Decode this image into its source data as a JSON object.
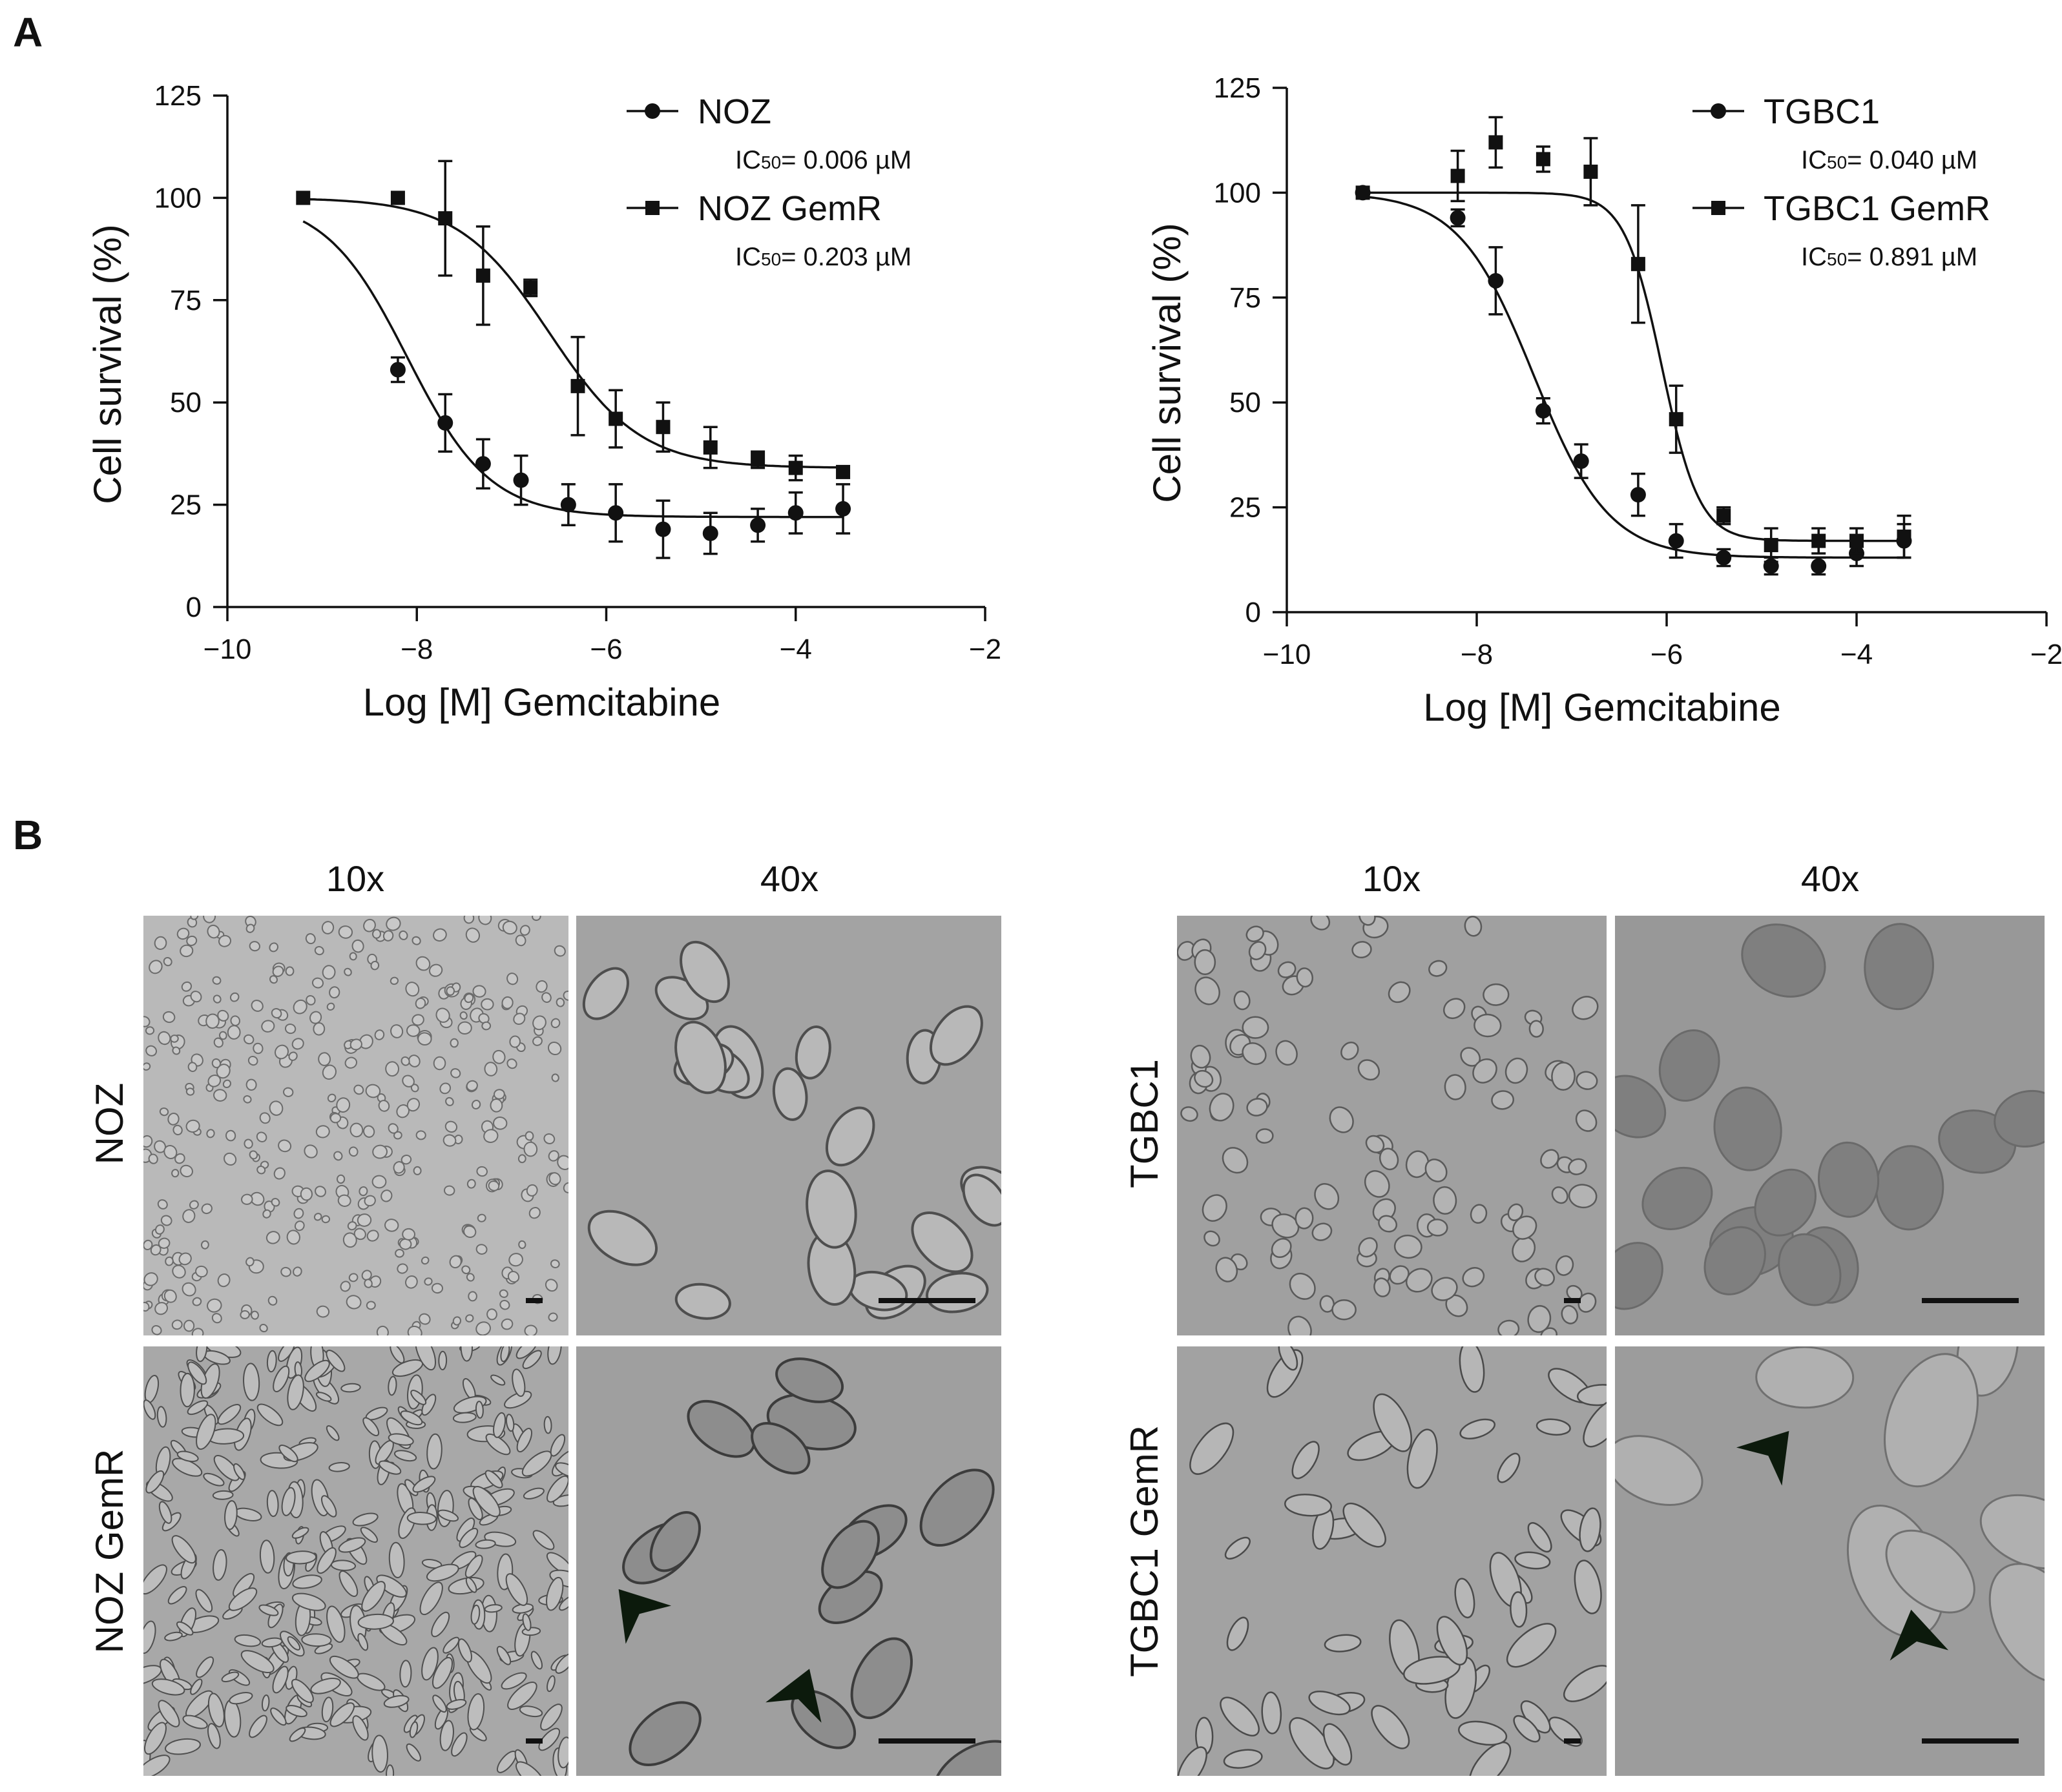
{
  "panel_a": {
    "label": "A"
  },
  "panel_b": {
    "label": "B",
    "groups": [
      {
        "magnifications": [
          "10x",
          "40x"
        ],
        "rows": [
          "NOZ",
          "NOZ GemR"
        ]
      },
      {
        "magnifications": [
          "10x",
          "40x"
        ],
        "rows": [
          "TGBC1",
          "TGBC1 GemR"
        ]
      }
    ]
  },
  "chart_data": [
    {
      "type": "scatter",
      "title": "",
      "xlabel": "Log [M] Gemcitabine",
      "ylabel": "Cell survival (%)",
      "xlim": [
        -10,
        -2
      ],
      "ylim": [
        0,
        125
      ],
      "xticks": [
        -10,
        -8,
        -6,
        -4,
        -2
      ],
      "yticks": [
        0,
        25,
        50,
        75,
        100,
        125
      ],
      "legend_position": "top-right",
      "series": [
        {
          "name": "NOZ",
          "marker": "circle",
          "ic50_label": "IC50= 0.006 µM",
          "x": [
            -8.2,
            -7.7,
            -7.3,
            -6.9,
            -6.4,
            -5.9,
            -5.4,
            -4.9,
            -4.4,
            -4.0,
            -3.5
          ],
          "y": [
            58,
            45,
            35,
            31,
            25,
            23,
            19,
            18,
            20,
            23,
            24
          ],
          "err": [
            3,
            7,
            6,
            6,
            5,
            7,
            7,
            5,
            4,
            5,
            6
          ],
          "fit": {
            "bottom": 22,
            "top": 100,
            "logEC50": -8.1,
            "hill": 1.0,
            "xrange": [
              -9.2,
              -3.5
            ]
          }
        },
        {
          "name": "NOZ GemR",
          "marker": "square",
          "ic50_label": "IC50= 0.203 µM",
          "x": [
            -9.2,
            -8.2,
            -7.7,
            -7.3,
            -6.8,
            -6.3,
            -5.9,
            -5.4,
            -4.9,
            -4.4,
            -4.0,
            -3.5
          ],
          "y": [
            100,
            100,
            95,
            81,
            78,
            54,
            46,
            44,
            39,
            36,
            34,
            33
          ],
          "err": [
            0,
            0,
            14,
            12,
            2,
            12,
            7,
            6,
            5,
            2,
            3,
            0
          ],
          "fit": {
            "bottom": 34,
            "top": 100,
            "logEC50": -6.6,
            "hill": 0.9,
            "xrange": [
              -9.2,
              -3.5
            ]
          }
        }
      ]
    },
    {
      "type": "scatter",
      "title": "",
      "xlabel": "Log [M] Gemcitabine",
      "ylabel": "Cell survival (%)",
      "xlim": [
        -10,
        -2
      ],
      "ylim": [
        0,
        125
      ],
      "xticks": [
        -10,
        -8,
        -6,
        -4,
        -2
      ],
      "yticks": [
        0,
        25,
        50,
        75,
        100,
        125
      ],
      "legend_position": "top-right",
      "series": [
        {
          "name": "TGBC1",
          "marker": "circle",
          "ic50_label": "IC50= 0.040 µM",
          "x": [
            -9.2,
            -8.2,
            -7.8,
            -7.3,
            -6.9,
            -6.3,
            -5.9,
            -5.4,
            -4.9,
            -4.4,
            -4.0,
            -3.5
          ],
          "y": [
            100,
            94,
            79,
            48,
            36,
            28,
            17,
            13,
            11,
            11,
            14,
            17
          ],
          "err": [
            0,
            2,
            8,
            3,
            4,
            5,
            4,
            2,
            2,
            2,
            3,
            4
          ],
          "fit": {
            "bottom": 13,
            "top": 100,
            "logEC50": -7.4,
            "hill": 1.1,
            "xrange": [
              -9.2,
              -3.5
            ]
          }
        },
        {
          "name": "TGBC1 GemR",
          "marker": "square",
          "ic50_label": "IC50= 0.891 µM",
          "x": [
            -9.2,
            -8.2,
            -7.8,
            -7.3,
            -6.8,
            -6.3,
            -5.9,
            -5.4,
            -4.9,
            -4.4,
            -4.0,
            -3.5
          ],
          "y": [
            100,
            104,
            112,
            108,
            105,
            83,
            46,
            23,
            16,
            17,
            17,
            18
          ],
          "err": [
            0,
            6,
            6,
            3,
            8,
            14,
            8,
            2,
            4,
            3,
            3,
            5
          ],
          "fit": {
            "bottom": 17,
            "top": 100,
            "logEC50": -6.05,
            "hill": 2.2,
            "xrange": [
              -9.2,
              -3.5
            ]
          }
        }
      ]
    }
  ]
}
